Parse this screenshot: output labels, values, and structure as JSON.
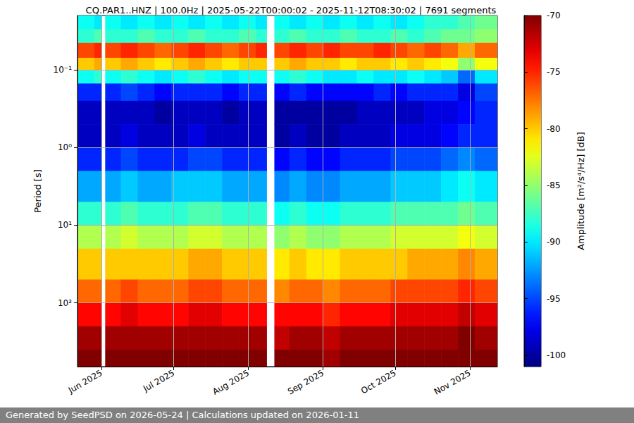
{
  "chart_data": {
    "type": "heatmap",
    "title": "CQ.PAR1..HNZ | 100.0Hz | 2025-05-22T00:00:02 - 2025-11-12T08:30:02 | 7691 segments",
    "ylabel": "Period [s]",
    "footer": "Generated by SeedPSD on 2026-05-24 | Calculations updated on 2026-01-11",
    "log": "y",
    "grid": true,
    "xlim": [
      "2025-05-22T00:00:02",
      "2025-11-12T08:30:02"
    ],
    "ylim": [
      0.02,
      660
    ],
    "xticks": [
      {
        "value": "2025-06-01",
        "label": "Jun 2025"
      },
      {
        "value": "2025-07-01",
        "label": "Jul 2025"
      },
      {
        "value": "2025-08-01",
        "label": "Aug 2025"
      },
      {
        "value": "2025-09-01",
        "label": "Sep 2025"
      },
      {
        "value": "2025-10-01",
        "label": "Oct 2025"
      },
      {
        "value": "2025-11-01",
        "label": "Nov 2025"
      }
    ],
    "yticks": [
      {
        "value": 0.1,
        "label": "10⁻¹"
      },
      {
        "value": 1,
        "label": "10⁰"
      },
      {
        "value": 10,
        "label": "10¹"
      },
      {
        "value": 100,
        "label": "10²"
      }
    ],
    "x_edges": [
      "2025-05-22T00:00:02",
      "2025-05-29",
      "2025-06-01",
      "2025-06-02T12:00:00",
      "2025-06-09",
      "2025-06-16",
      "2025-06-23",
      "2025-06-30",
      "2025-07-07",
      "2025-07-14",
      "2025-07-21",
      "2025-07-28",
      "2025-08-04",
      "2025-08-08T12:00:00",
      "2025-08-11T18:00:00",
      "2025-08-18",
      "2025-08-25",
      "2025-09-01",
      "2025-09-08",
      "2025-09-15",
      "2025-09-22",
      "2025-09-29",
      "2025-10-06",
      "2025-10-13",
      "2025-10-20",
      "2025-10-27",
      "2025-11-03",
      "2025-11-12T08:30:02"
    ],
    "y_edges": [
      0.02,
      0.03,
      0.045,
      0.07,
      0.1,
      0.15,
      0.25,
      0.5,
      1,
      2,
      5,
      10,
      20,
      50,
      100,
      200,
      400,
      660
    ],
    "cells": [
      [
        -89,
        -90,
        null,
        -89,
        -90,
        -89,
        -90,
        -89,
        -90,
        -89,
        -90,
        -89,
        -90,
        null,
        -89,
        -90,
        -89,
        -90,
        -89,
        -90,
        -89,
        -90,
        -89,
        -88,
        -88,
        -87,
        -86
      ],
      [
        -88,
        -87,
        null,
        -88,
        -88,
        -87,
        -88,
        -88,
        -87,
        -88,
        -88,
        -87,
        -88,
        null,
        -88,
        -87,
        -88,
        -88,
        -87,
        -88,
        -88,
        -87,
        -88,
        -87,
        -86,
        -86,
        -85
      ],
      [
        -76,
        -75,
        null,
        -76,
        -75,
        -76,
        -77,
        -76,
        -75,
        -76,
        -77,
        -76,
        -75,
        null,
        -76,
        -75,
        -76,
        -75,
        -76,
        -76,
        -75,
        -76,
        -77,
        -76,
        -77,
        -79,
        -77
      ],
      [
        -80,
        -79,
        null,
        -80,
        -79,
        -80,
        -81,
        -80,
        -79,
        -80,
        -81,
        -80,
        -80,
        null,
        -80,
        -79,
        -80,
        -80,
        -81,
        -80,
        -80,
        -81,
        -80,
        -81,
        -82,
        -85,
        -82
      ],
      [
        -89,
        -88,
        null,
        -89,
        -88,
        -89,
        -90,
        -89,
        -88,
        -89,
        -90,
        -89,
        -89,
        null,
        -89,
        -88,
        -89,
        -90,
        -90,
        -89,
        -90,
        -90,
        -89,
        -90,
        -91,
        -94,
        -90
      ],
      [
        -96,
        -96,
        null,
        -96,
        -95,
        -96,
        -97,
        -96,
        -96,
        -96,
        -97,
        -96,
        -96,
        null,
        -97,
        -96,
        -97,
        -97,
        -97,
        -97,
        -96,
        -97,
        -96,
        -96,
        -96,
        -98,
        -95
      ],
      [
        -99,
        -99,
        null,
        -99,
        -99,
        -99,
        -100,
        -99,
        -99,
        -99,
        -100,
        -99,
        -99,
        null,
        -100,
        -100,
        -100,
        -100,
        -100,
        -99,
        -99,
        -99,
        -99,
        -98,
        -98,
        -97,
        -96
      ],
      [
        -99,
        -99,
        null,
        -99,
        -98,
        -99,
        -99,
        -99,
        -98,
        -99,
        -99,
        -99,
        -99,
        null,
        -100,
        -99,
        -100,
        -100,
        -99,
        -99,
        -99,
        -98,
        -98,
        -98,
        -97,
        -96,
        -96
      ],
      [
        -96,
        -96,
        null,
        -96,
        -95,
        -96,
        -96,
        -96,
        -95,
        -95,
        -96,
        -96,
        -96,
        null,
        -97,
        -96,
        -97,
        -97,
        -96,
        -96,
        -96,
        -95,
        -95,
        -95,
        -94,
        -93,
        -94
      ],
      [
        -92,
        -92,
        null,
        -92,
        -91,
        -92,
        -92,
        -91,
        -91,
        -91,
        -92,
        -92,
        -92,
        null,
        -93,
        -92,
        -93,
        -93,
        -92,
        -92,
        -92,
        -91,
        -91,
        -91,
        -90,
        -89,
        -90
      ],
      [
        -88,
        -88,
        null,
        -88,
        -87,
        -88,
        -88,
        -88,
        -87,
        -87,
        -88,
        -88,
        -88,
        null,
        -89,
        -88,
        -89,
        -89,
        -88,
        -88,
        -88,
        -87,
        -87,
        -87,
        -87,
        -86,
        -87
      ],
      [
        -84,
        -84,
        null,
        -84,
        -83,
        -84,
        -84,
        -84,
        -83,
        -83,
        -84,
        -84,
        -84,
        null,
        -85,
        -84,
        -85,
        -85,
        -84,
        -84,
        -84,
        -83,
        -83,
        -83,
        -83,
        -82,
        -83
      ],
      [
        -80,
        -80,
        null,
        -80,
        -80,
        -80,
        -80,
        -80,
        -79,
        -79,
        -80,
        -80,
        -80,
        null,
        -81,
        -80,
        -81,
        -81,
        -80,
        -80,
        -80,
        -80,
        -79,
        -79,
        -79,
        -78,
        -79
      ],
      [
        -77,
        -77,
        null,
        -77,
        -76,
        -77,
        -77,
        -77,
        -76,
        -76,
        -77,
        -77,
        -77,
        null,
        -78,
        -77,
        -77,
        -78,
        -77,
        -77,
        -77,
        -76,
        -76,
        -76,
        -76,
        -75,
        -76
      ],
      [
        -74,
        -74,
        null,
        -74,
        -73,
        -74,
        -74,
        -74,
        -73,
        -73,
        -74,
        -74,
        -74,
        null,
        -74,
        -74,
        -74,
        -75,
        -74,
        -74,
        -74,
        -73,
        -73,
        -73,
        -73,
        -72,
        -73
      ],
      [
        -71,
        -71,
        null,
        -71,
        -71,
        -71,
        -71,
        -71,
        -71,
        -71,
        -71,
        -71,
        -71,
        null,
        -72,
        -71,
        -71,
        -72,
        -71,
        -71,
        -71,
        -71,
        -71,
        -71,
        -71,
        -70,
        -71
      ],
      [
        -70,
        -70,
        null,
        -70,
        -70,
        -70,
        -70,
        -70,
        -70,
        -70,
        -70,
        -70,
        -70,
        null,
        -70,
        -70,
        -70,
        -71,
        -70,
        -70,
        -70,
        -70,
        -70,
        -70,
        -70,
        -70,
        -70
      ]
    ],
    "colorbar": {
      "label": "Amplitude [m²/s⁴/Hz] [dB]",
      "range": [
        -101,
        -70
      ],
      "ticks": [
        -100,
        -95,
        -90,
        -85,
        -80,
        -75,
        -70
      ]
    }
  }
}
